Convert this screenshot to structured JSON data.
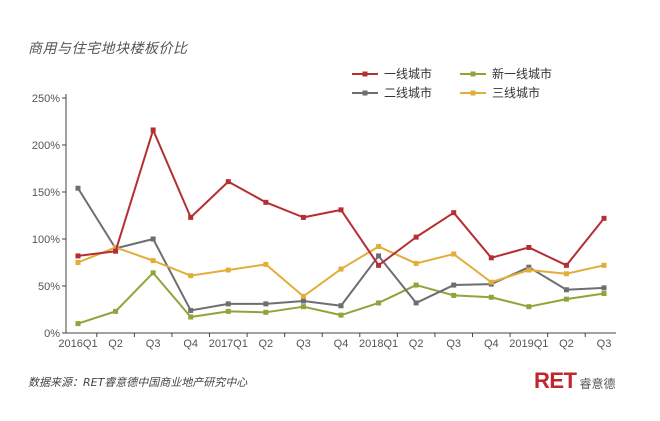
{
  "chart_data": {
    "type": "line",
    "title": "商用与住宅地块楼板价比",
    "categories": [
      "2016Q1",
      "Q2",
      "Q3",
      "Q4",
      "2017Q1",
      "Q2",
      "Q3",
      "Q4",
      "2018Q1",
      "Q2",
      "Q3",
      "Q4",
      "2019Q1",
      "Q2",
      "Q3"
    ],
    "ylim": [
      0,
      250
    ],
    "yticks": [
      "0%",
      "50%",
      "100%",
      "150%",
      "200%",
      "250%"
    ],
    "ytick_values": [
      0,
      50,
      100,
      150,
      200,
      250
    ],
    "legend_position": "top-right",
    "series": [
      {
        "name": "一线城市",
        "color": "#b52e32",
        "values": [
          82,
          87,
          216,
          123,
          161,
          139,
          123,
          131,
          72,
          102,
          128,
          80,
          91,
          72,
          122
        ]
      },
      {
        "name": "新一线城市",
        "color": "#8ca63a",
        "values": [
          10,
          23,
          64,
          17,
          23,
          22,
          28,
          19,
          32,
          51,
          40,
          38,
          28,
          36,
          42
        ]
      },
      {
        "name": "二线城市",
        "color": "#6e6e72",
        "values": [
          154,
          90,
          100,
          24,
          31,
          31,
          34,
          29,
          82,
          32,
          51,
          52,
          70,
          46,
          48
        ]
      },
      {
        "name": "三线城市",
        "color": "#e3ad3a",
        "values": [
          75,
          91,
          77,
          61,
          67,
          73,
          39,
          68,
          92,
          74,
          84,
          54,
          67,
          63,
          72
        ]
      }
    ]
  },
  "footer": {
    "source": "数据来源：RET睿意德中国商业地产研究中心",
    "brand_logo": "RET",
    "brand_name": "睿意德"
  }
}
